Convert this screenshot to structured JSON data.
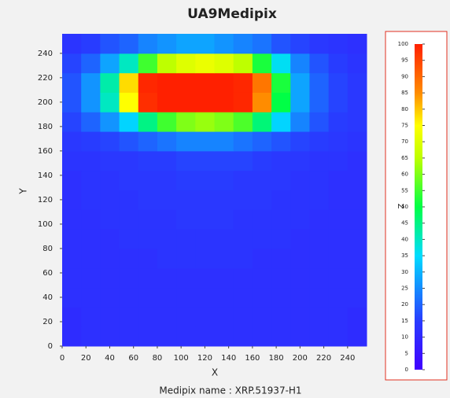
{
  "chart_data": {
    "type": "heatmap",
    "title": "UA9Medipix",
    "xlabel": "X",
    "ylabel": "Y",
    "zlabel": "Z",
    "footer": "Medipix name : XRP.51937-H1",
    "xlim": [
      0,
      256
    ],
    "ylim": [
      0,
      256
    ],
    "zlim": [
      0,
      100
    ],
    "xticks": [
      0,
      20,
      40,
      60,
      80,
      100,
      120,
      140,
      160,
      180,
      200,
      220,
      240
    ],
    "yticks": [
      0,
      20,
      40,
      60,
      80,
      100,
      120,
      140,
      160,
      180,
      200,
      220,
      240
    ],
    "zticks": [
      0,
      5,
      10,
      15,
      20,
      25,
      30,
      35,
      40,
      45,
      50,
      55,
      60,
      65,
      70,
      75,
      80,
      85,
      90,
      95,
      100
    ],
    "z": [
      [
        11,
        12,
        12,
        12,
        12,
        12,
        12,
        12,
        12,
        12,
        12,
        12,
        12,
        12,
        12,
        11
      ],
      [
        11,
        12,
        12,
        12,
        12,
        12,
        12,
        12,
        12,
        12,
        12,
        12,
        12,
        12,
        12,
        11
      ],
      [
        12,
        12,
        12,
        12,
        12,
        12,
        12,
        12,
        12,
        12,
        12,
        12,
        12,
        12,
        12,
        12
      ],
      [
        12,
        12,
        12,
        12,
        12,
        12,
        12,
        12,
        12,
        12,
        12,
        12,
        12,
        12,
        12,
        12
      ],
      [
        12,
        12,
        12,
        12,
        12,
        13,
        13,
        13,
        13,
        13,
        12,
        12,
        12,
        12,
        12,
        12
      ],
      [
        12,
        12,
        12,
        13,
        13,
        13,
        13,
        13,
        13,
        13,
        13,
        13,
        12,
        12,
        12,
        12
      ],
      [
        12,
        12,
        13,
        13,
        13,
        13,
        14,
        14,
        14,
        13,
        13,
        13,
        13,
        12,
        12,
        12
      ],
      [
        12,
        13,
        13,
        13,
        14,
        14,
        14,
        14,
        14,
        14,
        14,
        13,
        13,
        13,
        12,
        12
      ],
      [
        12,
        13,
        13,
        14,
        14,
        14,
        15,
        15,
        15,
        14,
        14,
        14,
        13,
        13,
        12,
        12
      ],
      [
        13,
        13,
        14,
        14,
        15,
        15,
        16,
        16,
        16,
        16,
        15,
        14,
        14,
        13,
        13,
        12
      ],
      [
        14,
        15,
        16,
        18,
        20,
        22,
        24,
        24,
        24,
        22,
        20,
        18,
        16,
        15,
        14,
        13
      ],
      [
        16,
        20,
        26,
        34,
        45,
        55,
        60,
        62,
        60,
        56,
        46,
        34,
        24,
        18,
        15,
        14
      ],
      [
        18,
        26,
        40,
        75,
        98,
        100,
        100,
        100,
        100,
        99,
        85,
        50,
        28,
        20,
        16,
        14
      ],
      [
        18,
        26,
        42,
        78,
        99,
        100,
        100,
        100,
        100,
        99,
        88,
        52,
        28,
        20,
        16,
        14
      ],
      [
        16,
        20,
        28,
        40,
        55,
        65,
        70,
        72,
        70,
        65,
        52,
        36,
        24,
        18,
        15,
        13
      ],
      [
        13,
        15,
        18,
        20,
        24,
        26,
        28,
        28,
        26,
        24,
        22,
        18,
        16,
        14,
        13,
        12
      ]
    ]
  }
}
